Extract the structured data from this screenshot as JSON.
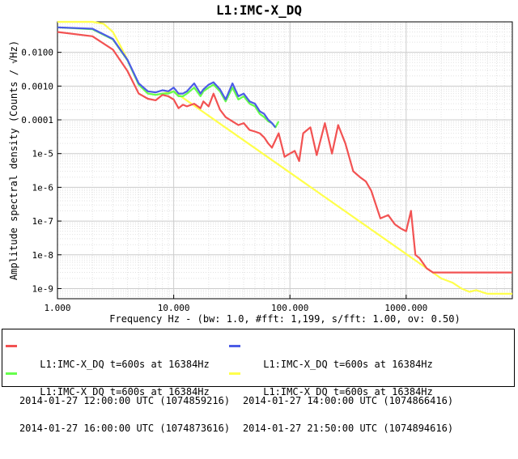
{
  "chart_data": {
    "type": "line",
    "title": "L1:IMC-X_DQ",
    "xlabel": "Frequency Hz - (bw: 1.0, #fft: 1,199, s/fft: 1.00, ov: 0.50)",
    "ylabel": "Amplitude spectral density (Counts / √Hz)",
    "xscale": "log",
    "yscale": "log",
    "xlim": [
      1,
      8192
    ],
    "ylim": [
      5e-10,
      0.08
    ],
    "grid": true,
    "legend_position": "bottom",
    "x_ticks": [
      {
        "value": 1,
        "label": "1.000"
      },
      {
        "value": 10,
        "label": "10.000"
      },
      {
        "value": 100,
        "label": "100.000"
      },
      {
        "value": 1000,
        "label": "1000.000"
      }
    ],
    "y_ticks": [
      {
        "value": 0.01,
        "label": "0.0100"
      },
      {
        "value": 0.001,
        "label": "0.0010"
      },
      {
        "value": 0.0001,
        "label": "0.0001"
      },
      {
        "value": 1e-05,
        "label": "1e-5"
      },
      {
        "value": 1e-06,
        "label": "1e-6"
      },
      {
        "value": 1e-07,
        "label": "1e-7"
      },
      {
        "value": 1e-08,
        "label": "1e-8"
      },
      {
        "value": 1e-09,
        "label": "1e-9"
      }
    ],
    "series": [
      {
        "name_line1": "L1:IMC-X_DQ t=600s at 16384Hz",
        "name_line2": "2014-01-27 12:00:00 UTC (1074859216)",
        "color": "#f25252",
        "x": [
          1,
          2,
          3,
          4,
          5,
          6,
          7,
          8,
          9,
          10,
          11,
          12,
          13,
          15,
          17,
          18,
          20,
          22,
          25,
          28,
          32,
          36,
          40,
          45,
          50,
          55,
          60,
          65,
          70,
          80,
          90,
          100,
          110,
          120,
          130,
          150,
          170,
          200,
          230,
          260,
          300,
          350,
          400,
          450,
          500,
          600,
          700,
          800,
          900,
          1000,
          1100,
          1200,
          1300,
          1500,
          1700,
          2000,
          3000,
          5000,
          8192
        ],
        "y": [
          0.04,
          0.03,
          0.012,
          0.0028,
          0.0006,
          0.00042,
          0.00038,
          0.00055,
          0.0005,
          0.0004,
          0.00022,
          0.00028,
          0.00025,
          0.0003,
          0.00022,
          0.00035,
          0.00025,
          0.0006,
          0.0002,
          0.00012,
          9e-05,
          7e-05,
          8e-05,
          5e-05,
          4.5e-05,
          4e-05,
          3e-05,
          2e-05,
          1.5e-05,
          4e-05,
          8e-06,
          1e-05,
          1.2e-05,
          6e-06,
          4e-05,
          6e-05,
          9e-06,
          8e-05,
          1e-05,
          7e-05,
          2e-05,
          3e-06,
          2e-06,
          1.5e-06,
          8e-07,
          1.2e-07,
          1.5e-07,
          8e-08,
          6e-08,
          5e-08,
          2e-07,
          1e-08,
          8e-09,
          4e-09,
          3e-09,
          3e-09,
          3e-09,
          3e-09,
          3e-09
        ]
      },
      {
        "name_line1": "L1:IMC-X_DQ t=600s at 16384Hz",
        "name_line2": "2014-01-27 14:00:00 UTC (1074866416)",
        "color": "#4c5ce6",
        "x": [
          1,
          2,
          3,
          4,
          5,
          6,
          7,
          8,
          9,
          10,
          11,
          12,
          13,
          15,
          17,
          18,
          20,
          22,
          25,
          28,
          32,
          36,
          40,
          45,
          50,
          55,
          60,
          65,
          70,
          75
        ],
        "y": [
          0.055,
          0.05,
          0.025,
          0.006,
          0.0012,
          0.0007,
          0.00065,
          0.00075,
          0.0007,
          0.0009,
          0.0006,
          0.0006,
          0.0007,
          0.0012,
          0.0006,
          0.0008,
          0.0011,
          0.0013,
          0.0008,
          0.0004,
          0.0012,
          0.0005,
          0.0006,
          0.00035,
          0.0003,
          0.00018,
          0.00015,
          0.0001,
          8e-05,
          6e-05
        ]
      },
      {
        "name_line1": "L1:IMC-X_DQ t=600s at 16384Hz",
        "name_line2": "2014-01-27 16:00:00 UTC (1074873616)",
        "color": "#66ff4c",
        "x": [
          1,
          2,
          3,
          4,
          5,
          6,
          7,
          8,
          9,
          10,
          11,
          12,
          13,
          15,
          17,
          18,
          20,
          22,
          25,
          28,
          32,
          36,
          40,
          45,
          50,
          55,
          60,
          65,
          70,
          75,
          80
        ],
        "y": [
          0.055,
          0.048,
          0.024,
          0.0058,
          0.0011,
          0.0006,
          0.00055,
          0.0006,
          0.0006,
          0.0007,
          0.0005,
          0.0005,
          0.0006,
          0.0009,
          0.0005,
          0.0007,
          0.0009,
          0.0011,
          0.0007,
          0.00035,
          0.0009,
          0.0004,
          0.0005,
          0.0003,
          0.00025,
          0.00015,
          0.00012,
          9e-05,
          8e-05,
          6e-05,
          9e-05
        ]
      },
      {
        "name_line1": "L1:IMC-X_DQ t=600s at 16384Hz",
        "name_line2": "2014-01-27 21:50:00 UTC (1074894616)",
        "color": "#ffff4c",
        "x": [
          1,
          2,
          2.5,
          3,
          3.5,
          4,
          5,
          6,
          7,
          8,
          10,
          1500,
          2000,
          2500,
          3000,
          3500,
          4000,
          5000,
          8192
        ],
        "y": [
          0.08,
          0.08,
          0.07,
          0.04,
          0.015,
          0.006,
          0.0011,
          0.0006,
          0.00055,
          0.0006,
          0.0007,
          4e-09,
          2e-09,
          1.5e-09,
          1e-09,
          8e-10,
          9e-10,
          7e-10,
          7e-10
        ]
      }
    ]
  }
}
